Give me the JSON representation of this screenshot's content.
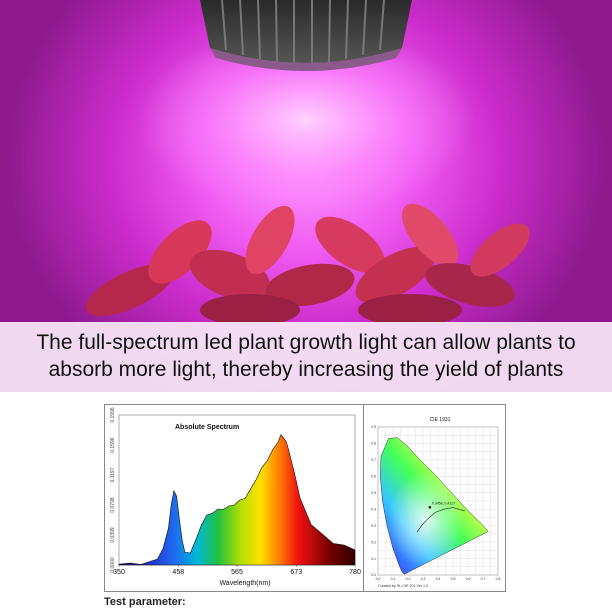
{
  "banner": {
    "line1": "The full-spectrum led plant growth light can allow plants to",
    "line2": "absorb more light, thereby increasing the yield of plants"
  },
  "colors": {
    "light": "#e94ee9",
    "banner_bg": "#f8e8f8",
    "leaf": "#d8385a"
  },
  "chart_data": [
    {
      "type": "area",
      "title": "Absolute Spectrum",
      "xlabel": "Wavelength(nm)",
      "ylabel": "",
      "x_ticks": [
        350,
        458,
        565,
        673,
        780
      ],
      "y_ticks": [
        "0.0000",
        "0.0399",
        "0.0798",
        "0.1197",
        "0.1596",
        "0.1996"
      ],
      "xlim": [
        350,
        780
      ],
      "ylim": [
        0,
        0.1996
      ],
      "x": [
        350,
        370,
        390,
        410,
        420,
        430,
        440,
        445,
        450,
        455,
        460,
        465,
        470,
        475,
        480,
        490,
        500,
        510,
        520,
        530,
        540,
        550,
        560,
        570,
        580,
        590,
        600,
        610,
        620,
        630,
        640,
        645,
        650,
        655,
        660,
        670,
        680,
        690,
        700,
        720,
        740,
        760,
        780
      ],
      "y": [
        0.001,
        0.001,
        0.002,
        0.004,
        0.009,
        0.02,
        0.05,
        0.078,
        0.1,
        0.09,
        0.062,
        0.032,
        0.018,
        0.015,
        0.017,
        0.032,
        0.054,
        0.065,
        0.07,
        0.073,
        0.075,
        0.077,
        0.081,
        0.085,
        0.09,
        0.1,
        0.115,
        0.128,
        0.14,
        0.152,
        0.165,
        0.172,
        0.17,
        0.162,
        0.152,
        0.12,
        0.09,
        0.07,
        0.055,
        0.04,
        0.03,
        0.025,
        0.02
      ]
    },
    {
      "type": "scatter",
      "title": "CIE 1931",
      "x_ticks": [
        "0.0",
        "0.1",
        "0.2",
        "0.3",
        "0.4",
        "0.5",
        "0.6",
        "0.7",
        "0.8"
      ],
      "y_ticks": [
        "0.0",
        "0.1",
        "0.2",
        "0.3",
        "0.4",
        "0.5",
        "0.6",
        "0.7",
        "0.8",
        "0.9"
      ],
      "xlim": [
        0,
        0.8
      ],
      "ylim": [
        0,
        0.9
      ],
      "footer": "Created by HL-CIE-201 Ver 1.0",
      "point_label": "0.3458, 0.4117",
      "points": [
        {
          "x": 0.3458,
          "y": 0.4117
        }
      ]
    }
  ],
  "test_parameter_label": "Test parameter:"
}
